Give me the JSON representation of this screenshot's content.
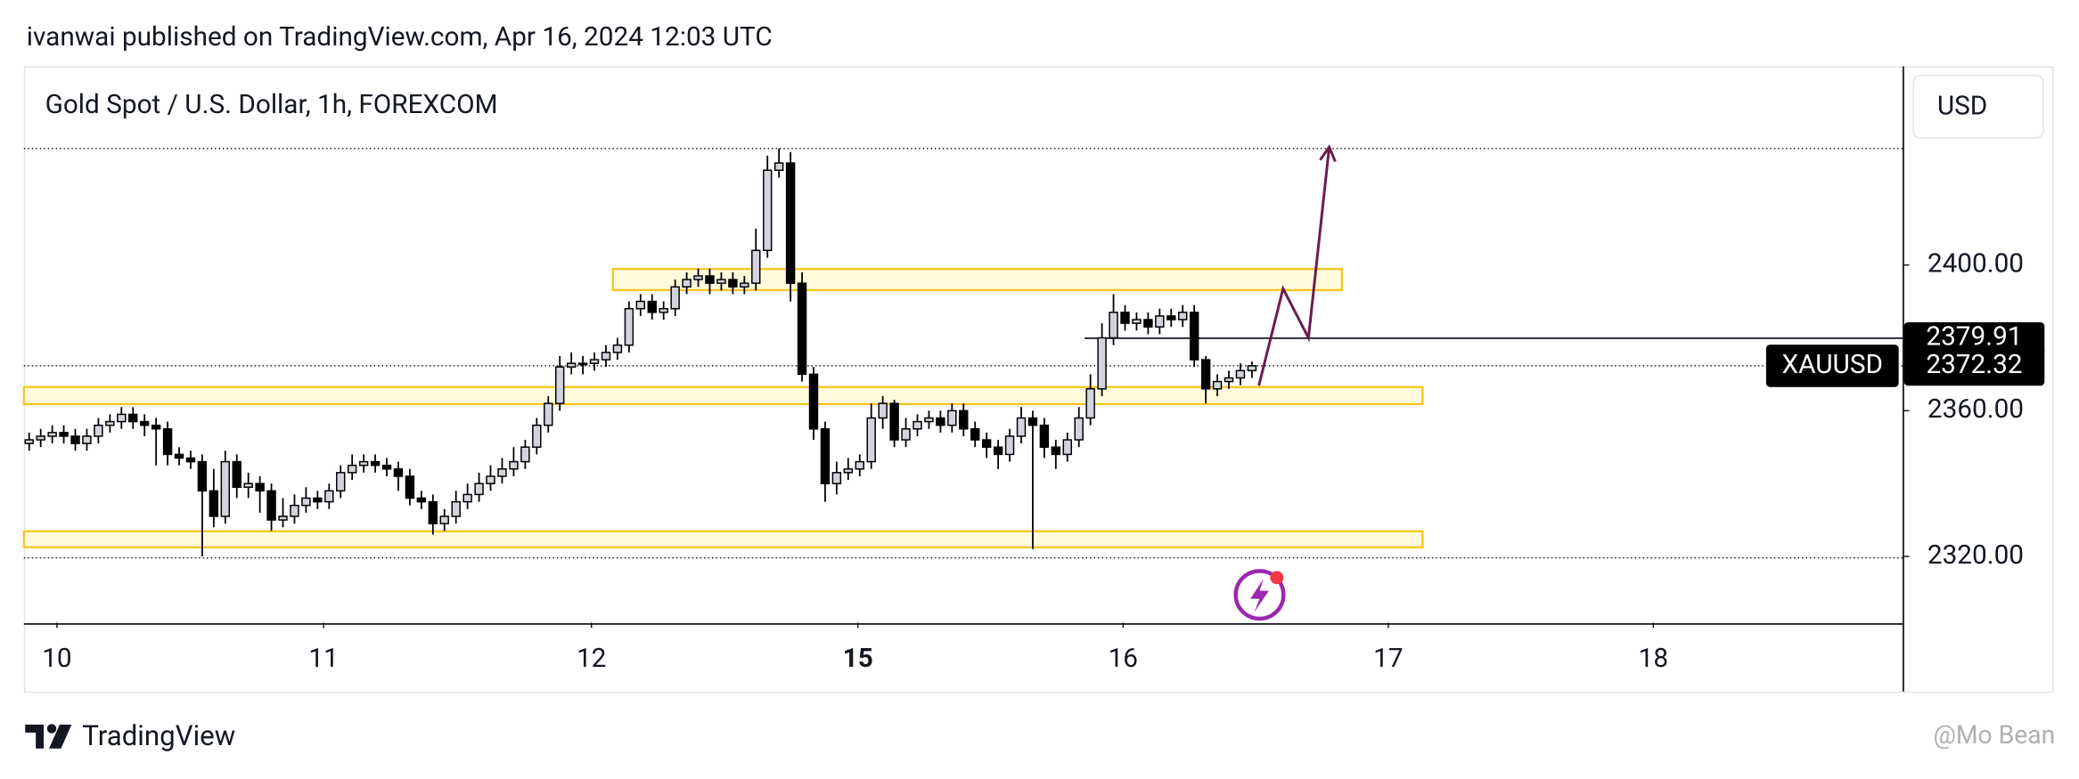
{
  "header": "ivanwai published on TradingView.com, Apr 16, 2024 12:03 UTC",
  "footer": {
    "brand": "TradingView",
    "watermark": "@Mo Bean"
  },
  "chart_data": {
    "type": "candlestick",
    "title": "Gold Spot / U.S. Dollar, 1h, FOREXCOM",
    "currency": "USD",
    "symbol": "XAUUSD",
    "up_color": "#d1d4dc",
    "down_color": "#000000",
    "open": [
      2351,
      2352,
      2353,
      2354,
      2353,
      2351,
      2353,
      2356,
      2357,
      2359,
      2357,
      2356,
      2355,
      2348,
      2347,
      2346,
      2338,
      2331,
      2346,
      2339,
      2340,
      2338,
      2330,
      2331,
      2334,
      2336,
      2335,
      2338,
      2343,
      2345,
      2346,
      2345,
      2344,
      2342,
      2336,
      2335,
      2329,
      2331,
      2335,
      2337,
      2340,
      2342,
      2344,
      2346,
      2350,
      2356,
      2362,
      2372,
      2373,
      2373,
      2374,
      2376,
      2378,
      2388,
      2390,
      2387,
      2388,
      2394,
      2396,
      2397,
      2395,
      2396,
      2394,
      2395,
      2404,
      2426,
      2428,
      2395,
      2370,
      2355,
      2340,
      2343,
      2344,
      2346,
      2358,
      2362,
      2352,
      2355,
      2357,
      2358,
      2356,
      2360,
      2355,
      2352,
      2350,
      2348,
      2353,
      2358,
      2356,
      2350,
      2348,
      2352,
      2358,
      2366,
      2380,
      2387,
      2384,
      2385,
      2383,
      2386,
      2385,
      2387,
      2374,
      2366,
      2368,
      2369,
      2371
    ],
    "high": [
      2354,
      2355,
      2356,
      2356,
      2355,
      2355,
      2358,
      2359,
      2361,
      2361,
      2359,
      2358,
      2357,
      2350,
      2349,
      2348,
      2344,
      2349,
      2348,
      2343,
      2342,
      2340,
      2336,
      2337,
      2339,
      2338,
      2340,
      2345,
      2348,
      2348,
      2348,
      2347,
      2346,
      2344,
      2338,
      2337,
      2333,
      2338,
      2340,
      2343,
      2345,
      2347,
      2350,
      2352,
      2358,
      2364,
      2375,
      2376,
      2375,
      2376,
      2378,
      2380,
      2390,
      2392,
      2392,
      2390,
      2396,
      2398,
      2399,
      2399,
      2398,
      2398,
      2397,
      2410,
      2430,
      2432,
      2431,
      2398,
      2372,
      2357,
      2346,
      2347,
      2348,
      2362,
      2364,
      2363,
      2358,
      2359,
      2360,
      2360,
      2362,
      2362,
      2357,
      2354,
      2352,
      2355,
      2361,
      2360,
      2358,
      2352,
      2354,
      2361,
      2370,
      2384,
      2392,
      2389,
      2387,
      2387,
      2388,
      2388,
      2389,
      2389,
      2375,
      2370,
      2371,
      2373,
      2373.5
    ],
    "low": [
      2349,
      2350,
      2351,
      2351,
      2349,
      2349,
      2351,
      2354,
      2355,
      2355,
      2353,
      2345,
      2345,
      2345,
      2344,
      2320,
      2328,
      2329,
      2336,
      2336,
      2332,
      2327,
      2328,
      2329,
      2332,
      2333,
      2333,
      2336,
      2341,
      2343,
      2343,
      2342,
      2338,
      2334,
      2333,
      2326,
      2327,
      2329,
      2333,
      2335,
      2338,
      2340,
      2342,
      2344,
      2348,
      2354,
      2360,
      2370,
      2370,
      2371,
      2372,
      2374,
      2376,
      2386,
      2385,
      2385,
      2386,
      2392,
      2394,
      2392,
      2393,
      2392,
      2392,
      2393,
      2402,
      2424,
      2390,
      2368,
      2352,
      2335,
      2337,
      2341,
      2342,
      2344,
      2355,
      2350,
      2350,
      2353,
      2355,
      2354,
      2354,
      2353,
      2350,
      2347,
      2344,
      2346,
      2351,
      2322,
      2347,
      2344,
      2346,
      2350,
      2356,
      2364,
      2378,
      2382,
      2382,
      2381,
      2381,
      2383,
      2383,
      2372,
      2362,
      2364,
      2366,
      2367,
      2369
    ],
    "close": [
      2352,
      2353,
      2354,
      2353,
      2351,
      2353,
      2356,
      2357,
      2359,
      2357,
      2356,
      2355,
      2348,
      2347,
      2346,
      2338,
      2331,
      2346,
      2339,
      2340,
      2338,
      2330,
      2331,
      2334,
      2336,
      2335,
      2338,
      2343,
      2345,
      2346,
      2345,
      2344,
      2342,
      2336,
      2335,
      2329,
      2331,
      2335,
      2337,
      2340,
      2342,
      2344,
      2346,
      2350,
      2356,
      2362,
      2372,
      2373,
      2373,
      2374,
      2376,
      2378,
      2388,
      2390,
      2387,
      2388,
      2394,
      2396,
      2397,
      2395,
      2396,
      2394,
      2395,
      2404,
      2426,
      2428,
      2395,
      2370,
      2355,
      2340,
      2343,
      2344,
      2346,
      2358,
      2362,
      2352,
      2355,
      2357,
      2358,
      2356,
      2360,
      2355,
      2352,
      2350,
      2348,
      2353,
      2358,
      2356,
      2350,
      2348,
      2352,
      2358,
      2366,
      2380,
      2387,
      2384,
      2385,
      2383,
      2386,
      2385,
      2387,
      2374,
      2366,
      2368,
      2369,
      2371,
      2372.32
    ],
    "xlim": [
      -0.46,
      162.41
    ],
    "ylim": [
      2301.82,
      2453.82
    ],
    "xticks": [
      {
        "value": 2.41,
        "label": "10"
      },
      {
        "value": 25.52,
        "label": "11"
      },
      {
        "value": 48.74,
        "label": "12"
      },
      {
        "value": 71.84,
        "label": "15",
        "bold": true
      },
      {
        "value": 94.83,
        "label": "16"
      },
      {
        "value": 117.82,
        "label": "17"
      },
      {
        "value": 140.8,
        "label": "18"
      }
    ],
    "yticks": [
      {
        "value": 2320,
        "label": "2320.00"
      },
      {
        "value": 2360,
        "label": "2360.00"
      },
      {
        "value": 2400,
        "label": "2400.00"
      }
    ],
    "zones": [
      {
        "top": 2398.9,
        "bottom": 2393.1,
        "x_start": 50.6,
        "x_end": 113.8
      },
      {
        "top": 2366.5,
        "bottom": 2361.8,
        "x_start": -0.46,
        "x_end": 120.8
      },
      {
        "top": 2326.9,
        "bottom": 2322.5,
        "x_start": -0.46,
        "x_end": 120.8
      }
    ],
    "dotted_levels": [
      2432,
      2319.6
    ],
    "last_price": {
      "value": 2372.32,
      "label": "2372.32"
    },
    "level_line": {
      "value": 2379.91,
      "label": "2379.91",
      "x_start": 91.5
    },
    "projection": {
      "color": "#6d1b4b",
      "x": [
        106.6,
        108.7,
        110.9,
        112.7
      ],
      "y": [
        2366.9,
        2393.5,
        2380,
        2432.4
      ]
    }
  }
}
